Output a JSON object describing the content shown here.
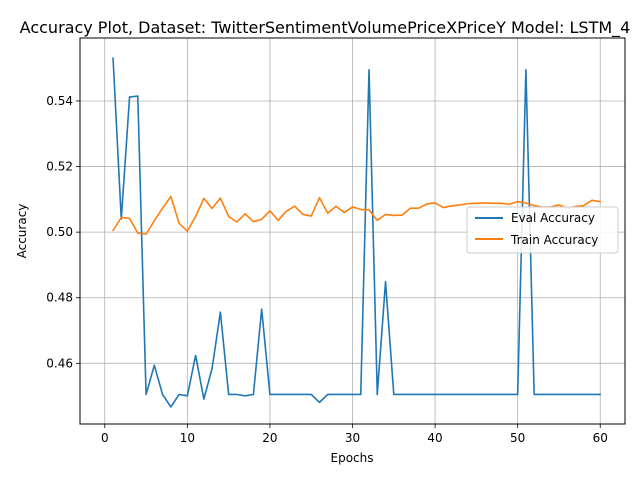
{
  "chart_data": {
    "type": "line",
    "title": "Accuracy Plot, Dataset: TwitterSentimentVolumePriceXPriceY Model: LSTM_4",
    "xlabel": "Epochs",
    "ylabel": "Accuracy",
    "xlim": [
      -3,
      63
    ],
    "ylim": [
      0.4415,
      0.5592
    ],
    "x_ticks": [
      0,
      10,
      20,
      30,
      40,
      50,
      60
    ],
    "y_ticks": [
      0.46,
      0.48,
      0.5,
      0.52,
      0.54
    ],
    "y_tick_labels": [
      "0.46",
      "0.48",
      "0.50",
      "0.52",
      "0.54"
    ],
    "grid": true,
    "legend_position": "center-right",
    "x": [
      1,
      2,
      3,
      4,
      5,
      6,
      7,
      8,
      9,
      10,
      11,
      12,
      13,
      14,
      15,
      16,
      17,
      18,
      19,
      20,
      21,
      22,
      23,
      24,
      25,
      26,
      27,
      28,
      29,
      30,
      31,
      32,
      33,
      34,
      35,
      36,
      37,
      38,
      39,
      40,
      41,
      42,
      43,
      44,
      45,
      46,
      47,
      48,
      49,
      50,
      51,
      52,
      53,
      54,
      55,
      56,
      57,
      58,
      59,
      60
    ],
    "series": [
      {
        "name": "Eval Accuracy",
        "color": "#1f77b4",
        "values": [
          0.5531,
          0.504,
          0.5412,
          0.5415,
          0.4505,
          0.4594,
          0.4505,
          0.4467,
          0.4505,
          0.4501,
          0.4624,
          0.4491,
          0.4585,
          0.4756,
          0.4505,
          0.4505,
          0.4501,
          0.4505,
          0.4765,
          0.4505,
          0.4505,
          0.4505,
          0.4505,
          0.4505,
          0.4505,
          0.4481,
          0.4505,
          0.4505,
          0.4505,
          0.4505,
          0.4505,
          0.5495,
          0.4505,
          0.4849,
          0.4505,
          0.4505,
          0.4505,
          0.4505,
          0.4505,
          0.4505,
          0.4505,
          0.4505,
          0.4505,
          0.4505,
          0.4505,
          0.4505,
          0.4505,
          0.4505,
          0.4505,
          0.4505,
          0.5495,
          0.4505,
          0.4505,
          0.4505,
          0.4505,
          0.4505,
          0.4505,
          0.4505,
          0.4505,
          0.4505
        ]
      },
      {
        "name": "Train Accuracy",
        "color": "#ff7f0e",
        "values": [
          0.5005,
          0.5045,
          0.5042,
          0.4997,
          0.4994,
          0.5035,
          0.5073,
          0.5109,
          0.5027,
          0.5003,
          0.5048,
          0.5103,
          0.5072,
          0.5104,
          0.5048,
          0.5031,
          0.5056,
          0.5032,
          0.5039,
          0.5065,
          0.5036,
          0.5064,
          0.5079,
          0.5054,
          0.5049,
          0.5105,
          0.5058,
          0.5079,
          0.506,
          0.5077,
          0.5069,
          0.5068,
          0.5036,
          0.5054,
          0.5051,
          0.5052,
          0.5073,
          0.5073,
          0.5086,
          0.5089,
          0.5075,
          0.508,
          0.5083,
          0.5087,
          0.5088,
          0.5089,
          0.5088,
          0.5088,
          0.5085,
          0.5093,
          0.5089,
          0.5081,
          0.5076,
          0.5077,
          0.5083,
          0.5073,
          0.5078,
          0.5081,
          0.5097,
          0.5093
        ]
      }
    ]
  }
}
